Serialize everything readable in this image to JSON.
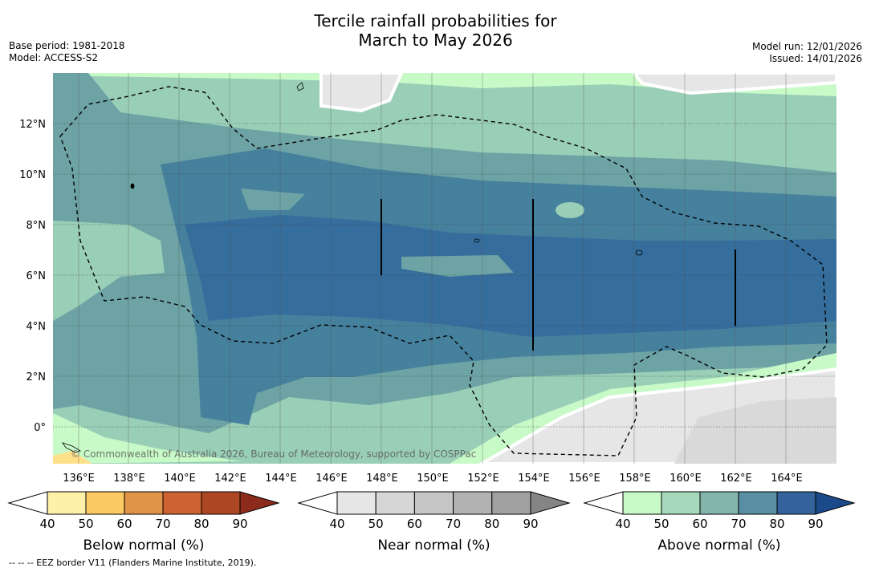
{
  "title_line1": "Tercile rainfall probabilities for",
  "title_line2": "March to May 2026",
  "base_period": "Base period: 1981-2018",
  "model": "Model: ACCESS-S2",
  "model_run": "Model run: 12/01/2026",
  "issued": "Issued: 14/01/2026",
  "copyright": "© Commonwealth of Australia 2026, Bureau of Meteorology, supported by COSPPac",
  "lat_labels": [
    "12°N",
    "10°N",
    "8°N",
    "6°N",
    "4°N",
    "2°N",
    "0°"
  ],
  "lon_labels": [
    "136°E",
    "138°E",
    "140°E",
    "142°E",
    "144°E",
    "146°E",
    "148°E",
    "150°E",
    "152°E",
    "154°E",
    "156°E",
    "158°E",
    "160°E",
    "162°E",
    "164°E"
  ],
  "colorbars": [
    {
      "label": "Below normal (%)",
      "ticks": [
        "40",
        "50",
        "60",
        "70",
        "80",
        "90"
      ],
      "colors": [
        "#fff0a8",
        "#fdc965",
        "#e09448",
        "#cd6232",
        "#ad4723",
        "#8c2a1c"
      ]
    },
    {
      "label": "Near normal (%)",
      "ticks": [
        "40",
        "50",
        "60",
        "70",
        "80",
        "90"
      ],
      "colors": [
        "#e6e6e6",
        "#d6d6d6",
        "#c6c6c6",
        "#b3b3b3",
        "#a1a1a1",
        "#858585"
      ]
    },
    {
      "label": "Above normal (%)",
      "ticks": [
        "40",
        "50",
        "60",
        "70",
        "80",
        "90"
      ],
      "colors": [
        "#c8fac8",
        "#a6d9bc",
        "#84b5ad",
        "#5a8ea2",
        "#33639a",
        "#1a4a8a"
      ]
    }
  ],
  "footnote": "--  --  -- EEZ border V11 (Flanders Marine Institute, 2019).",
  "legend_colors": {
    "above_50": "#9acfb7",
    "above_60": "#6da3a5",
    "above_70": "#45809d",
    "above_80": "#336a9c",
    "above_40": "#c8fac8",
    "near_40": "#e6e6e6",
    "near_50": "#d9d9d9"
  }
}
